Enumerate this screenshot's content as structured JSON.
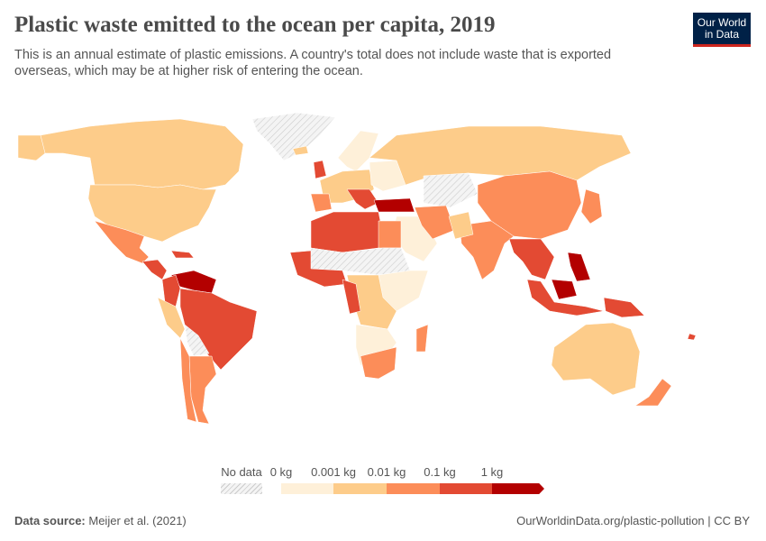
{
  "title": "Plastic waste emitted to the ocean per capita, 2019",
  "subtitle": "This is an annual estimate of plastic emissions. A country's total does not include waste that is exported overseas, which may be at higher risk of entering the ocean.",
  "logo": {
    "line1": "Our World",
    "line2": "in Data"
  },
  "legend": {
    "no_data_label": "No data",
    "ticks": [
      "0 kg",
      "0.001 kg",
      "0.01 kg",
      "0.1 kg",
      "1 kg"
    ],
    "colors": [
      "#fef0d9",
      "#fdcc8a",
      "#fc8d59",
      "#e34a33",
      "#b30000"
    ],
    "no_data_color": "hatched grey"
  },
  "footer": {
    "source_label": "Data source:",
    "source": "Meijer et al. (2021)",
    "url_license": "OurWorldinData.org/plastic-pollution | CC BY"
  }
}
